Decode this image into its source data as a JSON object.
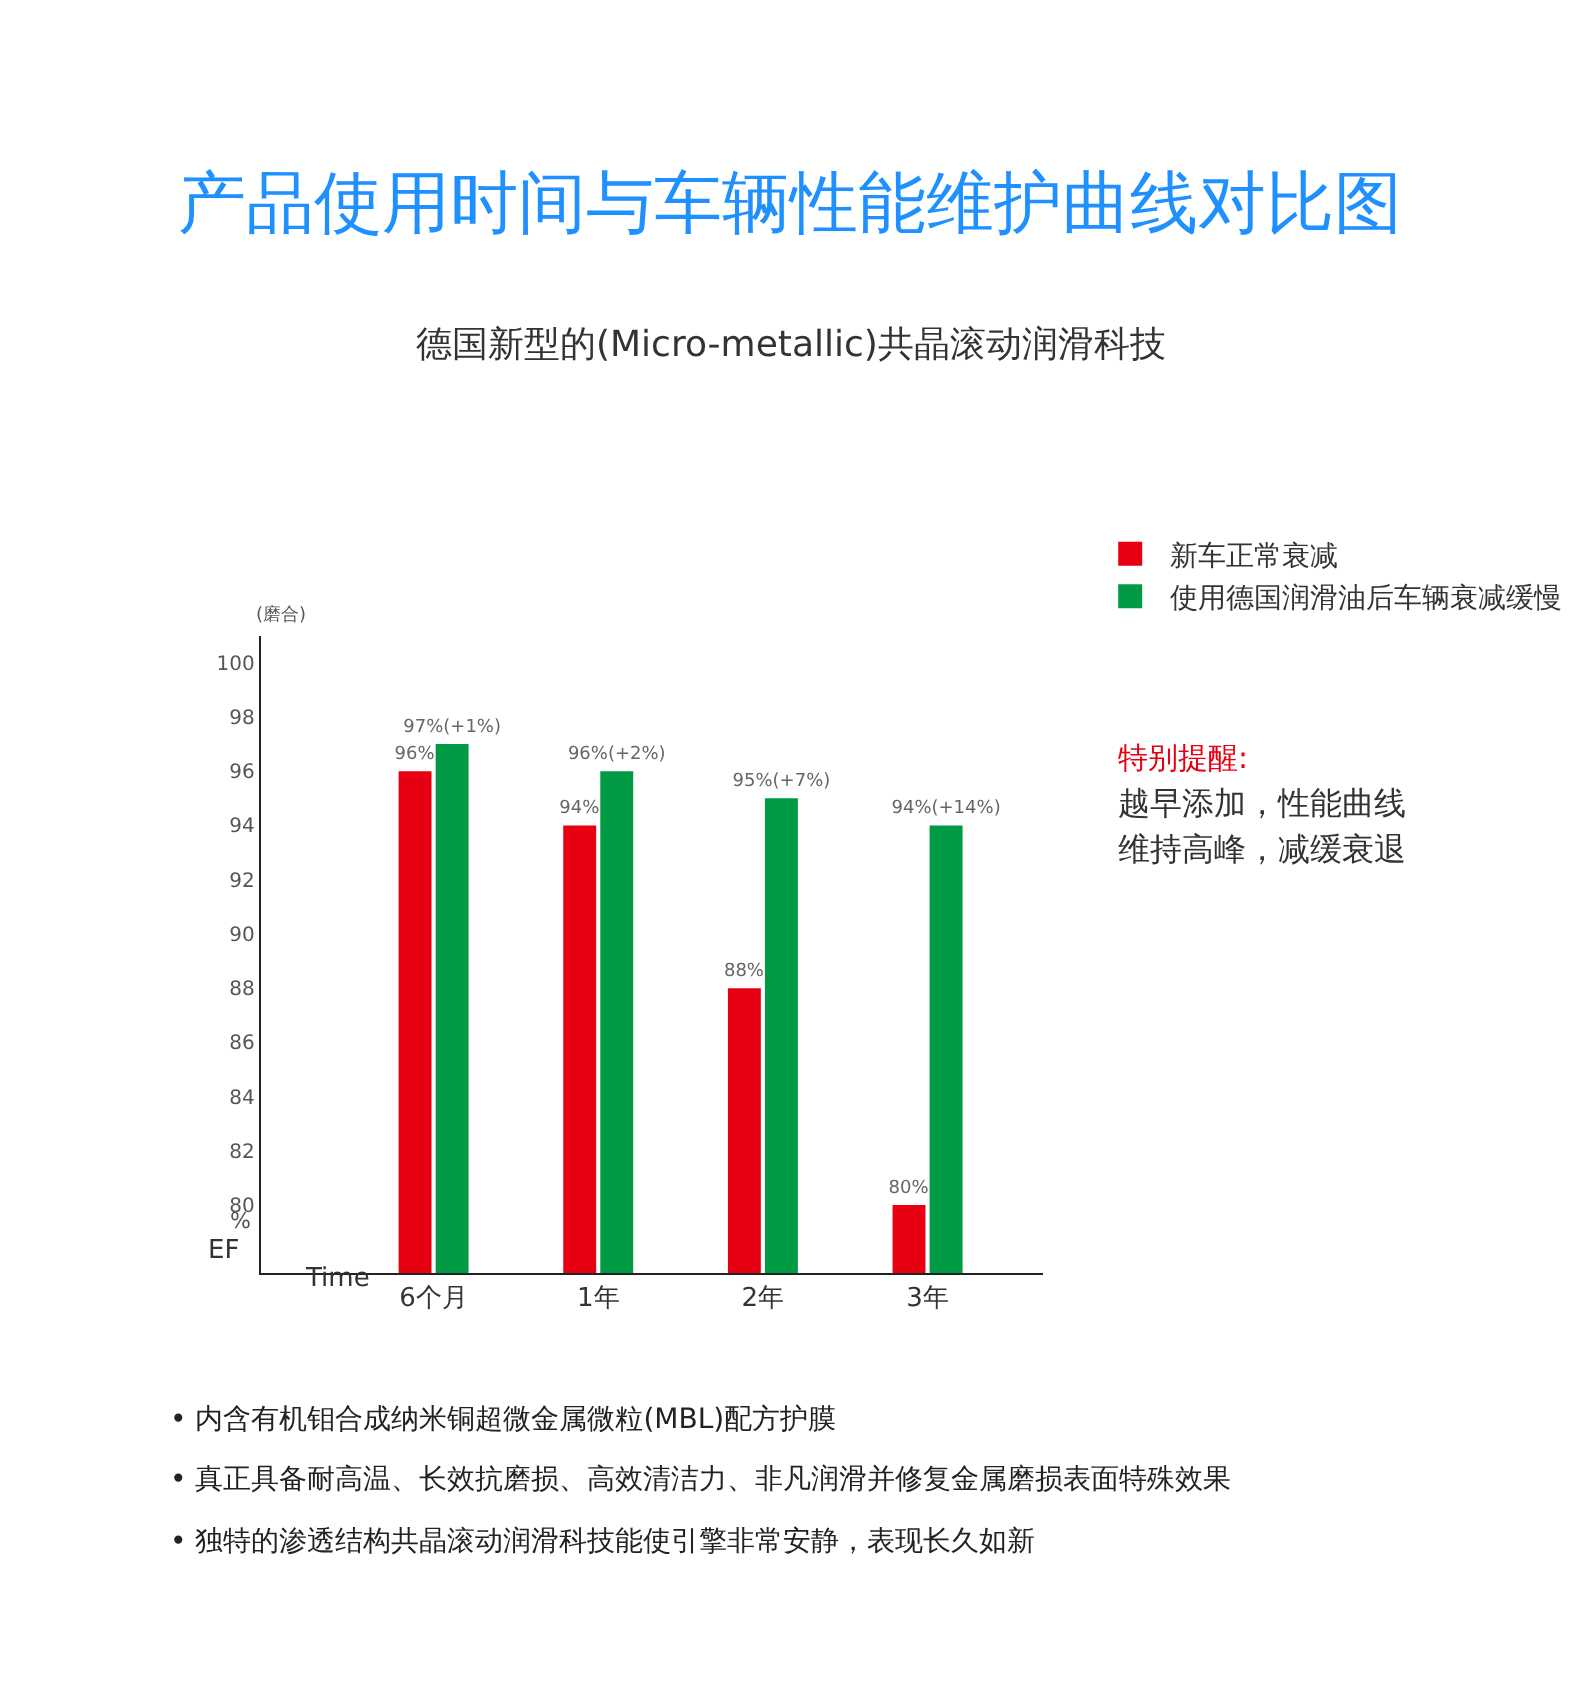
{
  "chart_data": {
    "type": "bar",
    "title": "产品使用时间与车辆性能维护曲线对比图",
    "subtitle": "德国新型的(Micro-metallic)共晶滚动润滑科技",
    "xlabel": "Time",
    "ylabel": "(磨合)",
    "categories": [
      "6个月",
      "1年",
      "2年",
      "3年"
    ],
    "series": [
      {
        "name": "新车正常衰减",
        "color": "#e60012",
        "values": [
          96,
          94,
          88,
          80
        ],
        "value_labels": [
          "96%",
          "94%",
          "88%",
          "80%"
        ]
      },
      {
        "name": "使用德国润滑油后车辆衰减缓慢",
        "color": "#009944",
        "values": [
          97,
          96,
          95,
          94
        ],
        "value_labels": [
          "97%(+1%)",
          "96%(+2%)",
          "95%(+7%)",
          "94%(+14%)"
        ]
      }
    ],
    "ylim": [
      77.5,
      101
    ],
    "yticks": [
      80,
      82,
      84,
      86,
      88,
      90,
      92,
      94,
      96,
      98,
      100
    ],
    "legend": "top right",
    "annotations": [
      "%",
      "EF",
      "特别提醒:",
      "越早添加，性能曲线",
      "维持高峰，减缓衰退",
      "• 内含有机钼合成纳米铜超微金属微粒(MBL)配方护膜",
      "• 真正具备耐高温、长效抗磨损、高效清洁力、非凡润滑并修复金属磨损表面特殊效果",
      "• 独特的渗透结构共晶滚动润滑科技能使引擎非常安静，表现长久如新"
    ]
  }
}
